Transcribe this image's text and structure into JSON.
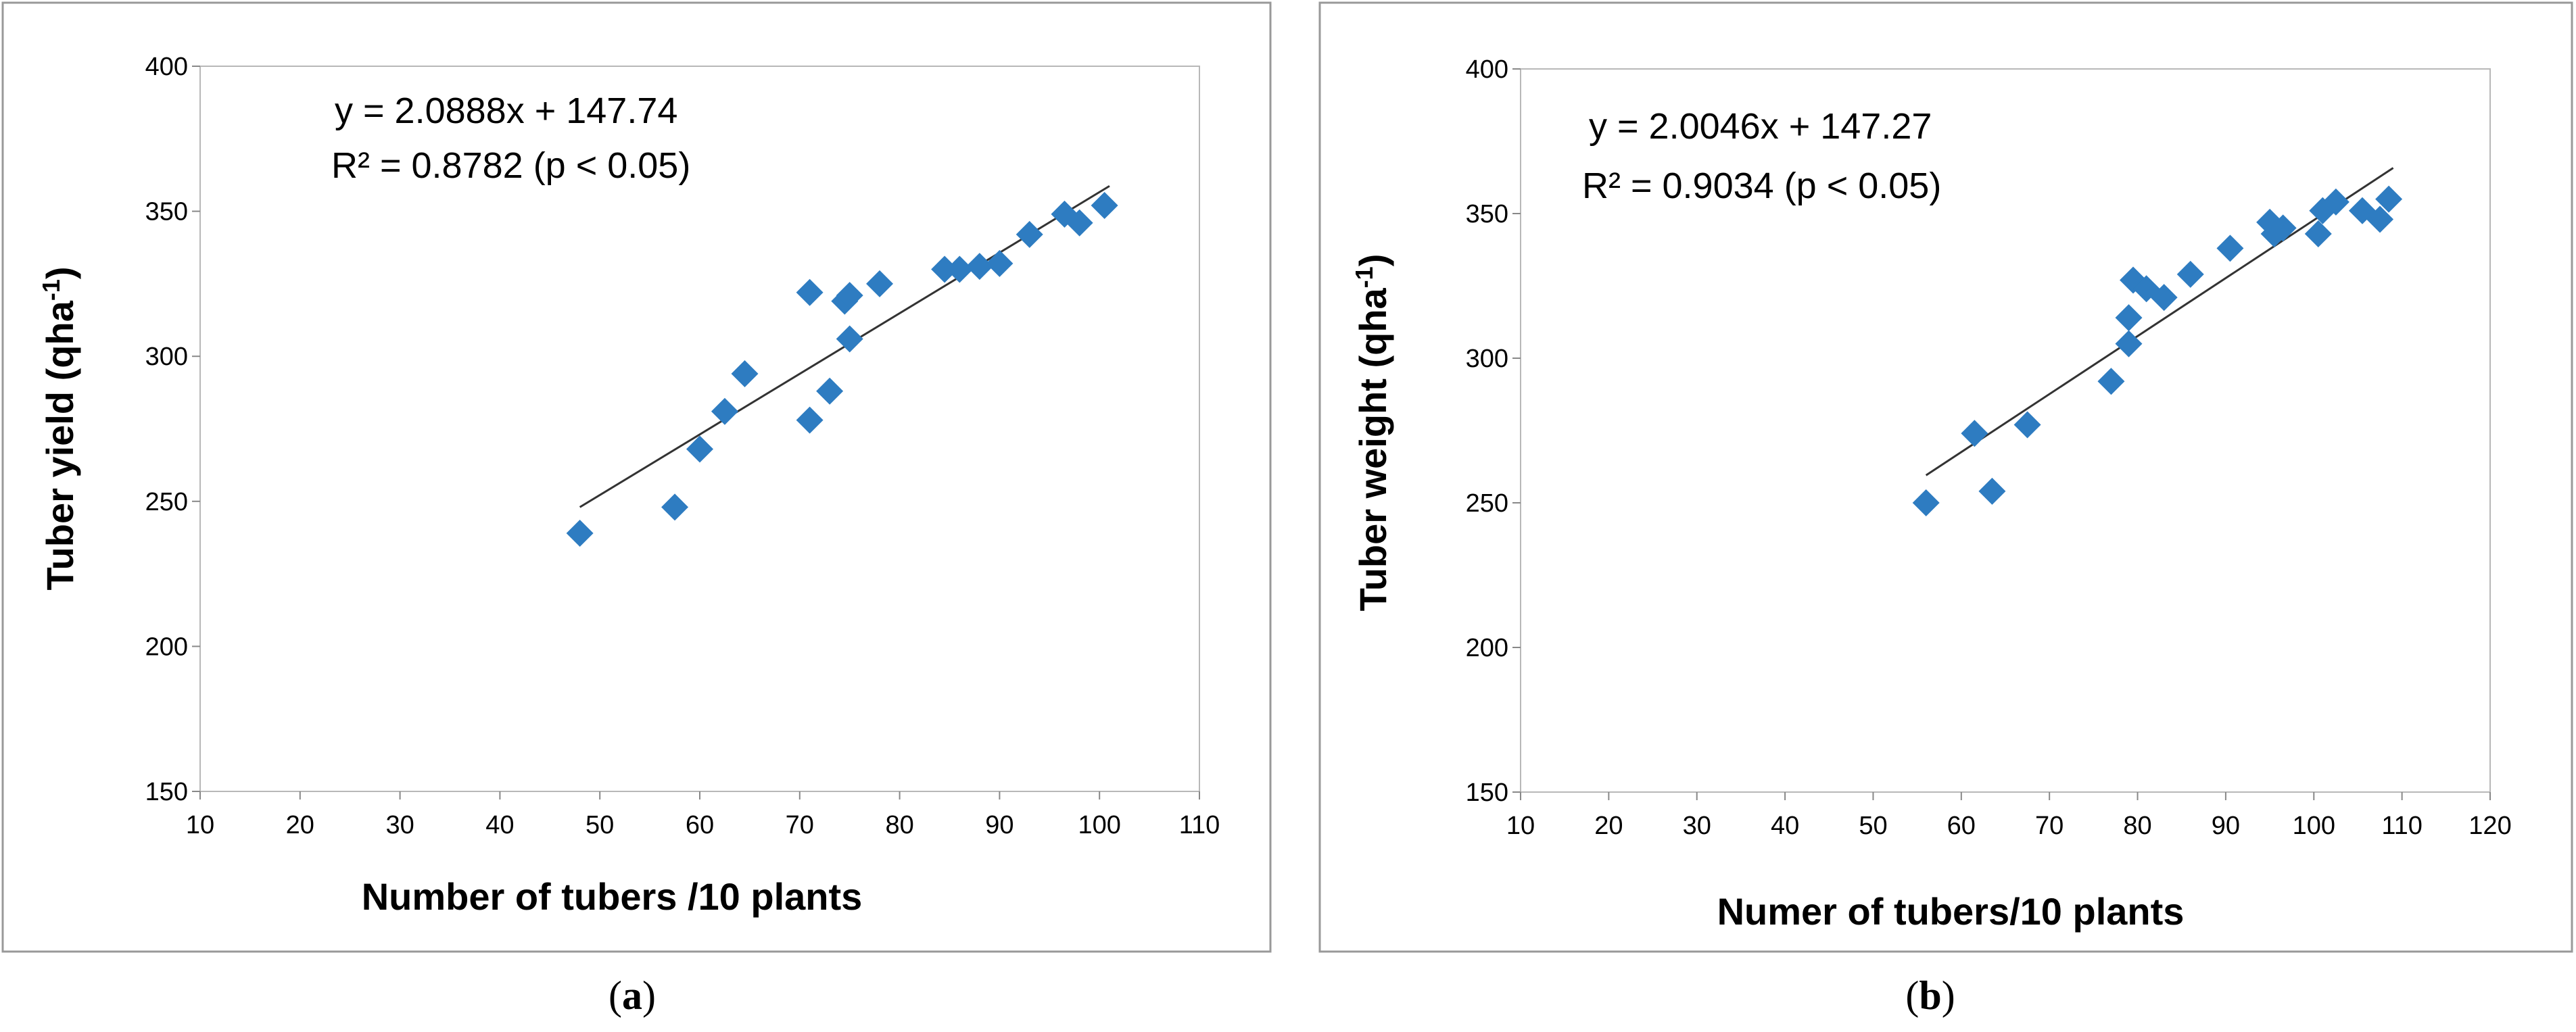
{
  "chart_data": [
    {
      "type": "scatter",
      "panel_label": "a",
      "xlabel": "Number of tubers /10 plants",
      "ylabel": "Tuber yield (qha",
      "ylabel_sup": "-1",
      "ylabel_end": ")",
      "xlim": [
        10,
        110
      ],
      "ylim": [
        150,
        400
      ],
      "xticks": [
        10,
        20,
        30,
        40,
        50,
        60,
        70,
        80,
        90,
        100,
        110
      ],
      "yticks": [
        150,
        200,
        250,
        300,
        350,
        400
      ],
      "equation": "y = 2.0888x + 147.74",
      "r2": "R² = 0.8782 (p < 0.05)",
      "trendline": {
        "slope": 2.0888,
        "intercept": 147.74,
        "x_start": 48,
        "x_end": 101
      },
      "marker_color": "#2E7CC1",
      "points": [
        {
          "x": 48,
          "y": 239
        },
        {
          "x": 57.5,
          "y": 248
        },
        {
          "x": 60,
          "y": 268
        },
        {
          "x": 62.5,
          "y": 281
        },
        {
          "x": 64.5,
          "y": 294
        },
        {
          "x": 71,
          "y": 322
        },
        {
          "x": 71,
          "y": 278
        },
        {
          "x": 73,
          "y": 288
        },
        {
          "x": 74.5,
          "y": 319
        },
        {
          "x": 75,
          "y": 321
        },
        {
          "x": 75,
          "y": 306
        },
        {
          "x": 78,
          "y": 325
        },
        {
          "x": 84.5,
          "y": 330
        },
        {
          "x": 86,
          "y": 330
        },
        {
          "x": 88,
          "y": 331
        },
        {
          "x": 90,
          "y": 332
        },
        {
          "x": 93,
          "y": 342
        },
        {
          "x": 96.5,
          "y": 349
        },
        {
          "x": 98,
          "y": 346
        },
        {
          "x": 100.5,
          "y": 352
        }
      ]
    },
    {
      "type": "scatter",
      "panel_label": "b",
      "xlabel": "Numer of tubers/10 plants",
      "ylabel": "Tuber weight (qha",
      "ylabel_sup": "-1",
      "ylabel_end": ")",
      "xlim": [
        10,
        120
      ],
      "ylim": [
        150,
        400
      ],
      "xticks": [
        10,
        20,
        30,
        40,
        50,
        60,
        70,
        80,
        90,
        100,
        110,
        120
      ],
      "yticks": [
        150,
        200,
        250,
        300,
        350,
        400
      ],
      "equation": "y = 2.0046x + 147.27",
      "r2": "R² = 0.9034 (p < 0.05)",
      "trendline": {
        "slope": 2.0046,
        "intercept": 147.27,
        "x_start": 56,
        "x_end": 109
      },
      "marker_color": "#2E7CC1",
      "points": [
        {
          "x": 56,
          "y": 250
        },
        {
          "x": 61.5,
          "y": 274
        },
        {
          "x": 63.5,
          "y": 254
        },
        {
          "x": 67.5,
          "y": 277
        },
        {
          "x": 77,
          "y": 292
        },
        {
          "x": 79,
          "y": 305
        },
        {
          "x": 79,
          "y": 314
        },
        {
          "x": 79.5,
          "y": 327
        },
        {
          "x": 81,
          "y": 324
        },
        {
          "x": 83,
          "y": 321
        },
        {
          "x": 86,
          "y": 329
        },
        {
          "x": 90.5,
          "y": 338
        },
        {
          "x": 95,
          "y": 347
        },
        {
          "x": 95.5,
          "y": 343
        },
        {
          "x": 96.5,
          "y": 345
        },
        {
          "x": 100.5,
          "y": 343
        },
        {
          "x": 101,
          "y": 351
        },
        {
          "x": 102.5,
          "y": 354
        },
        {
          "x": 105.5,
          "y": 351
        },
        {
          "x": 107.5,
          "y": 348
        },
        {
          "x": 108.5,
          "y": 355
        }
      ]
    }
  ]
}
